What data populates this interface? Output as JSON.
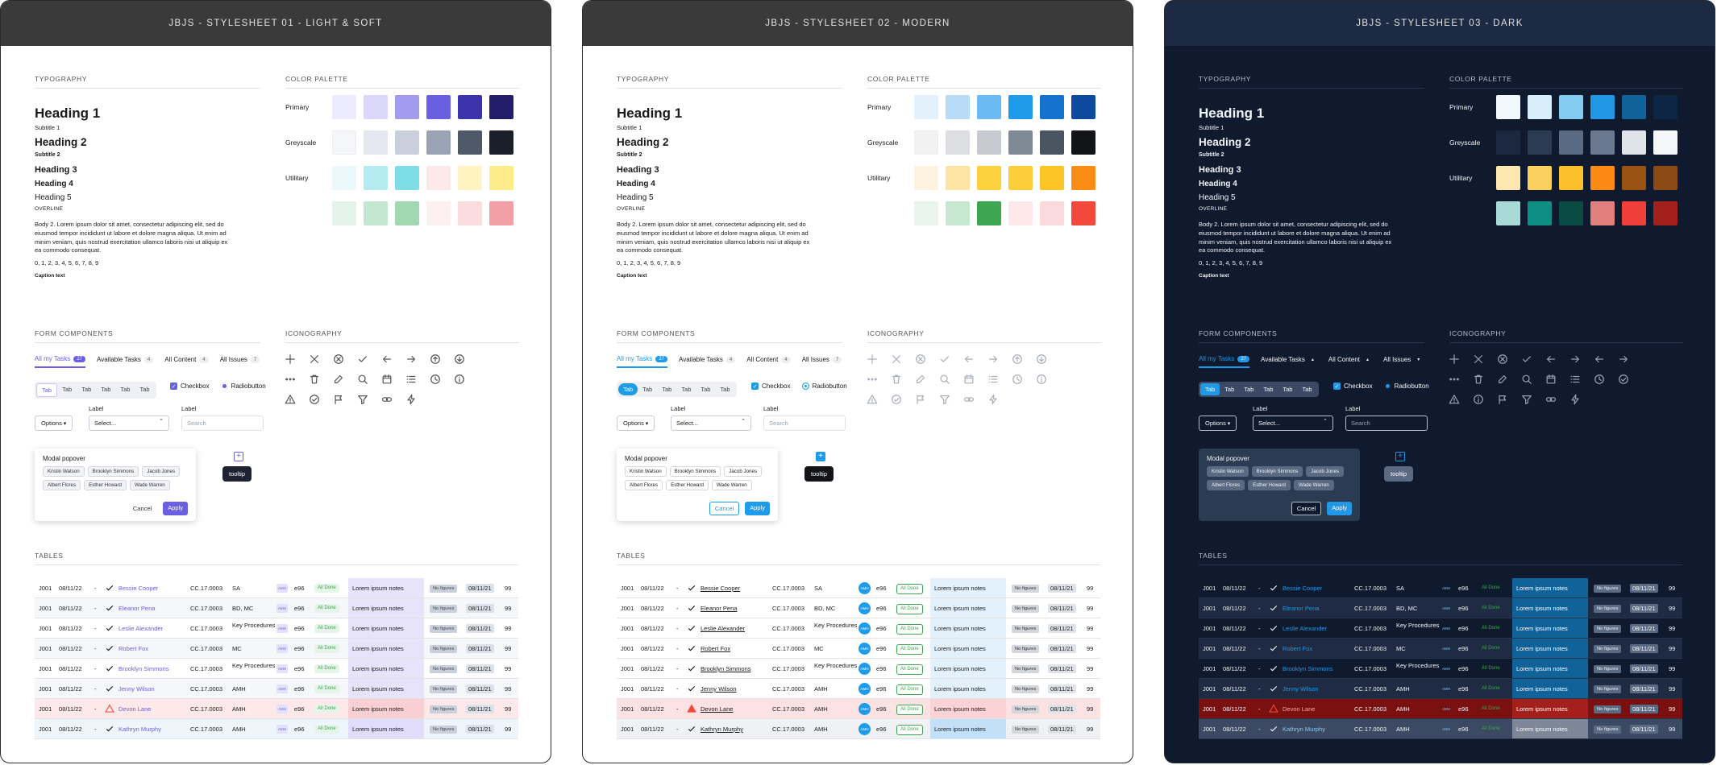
{
  "boards": [
    {
      "title": "JBJS - STYLESHEET 01 - LIGHT & SOFT",
      "theme": "light"
    },
    {
      "title": "JBJS - STYLESHEET 02 - MODERN",
      "theme": "modern"
    },
    {
      "title": "JBJS - STYLESHEET 03 - DARK",
      "theme": "dark"
    }
  ],
  "sections": {
    "typography": "TYPOGRAPHY",
    "palette": "COLOR PALETTE",
    "forms": "FORM COMPONENTS",
    "icons": "ICONOGRAPHY",
    "tables": "TABLES"
  },
  "typography": {
    "h1": "Heading 1",
    "sub1": "Subtitle 1",
    "h2": "Heading 2",
    "sub2": "Subtitle 2",
    "h3": "Heading 3",
    "h4": "Heading 4",
    "h5": "Heading 5",
    "overline": "OVERLINE",
    "body2": "Body 2. Lorem ipsum dolor sit amet, consectetur adipiscing elit, sed do eiusmod tempor incididunt ut labore et dolore magna aliqua. Ut enim ad minim veniam, quis nostrud exercitation ullamco laboris nisi ut aliquip ex ea commodo consequat.",
    "numbers": "0, 1, 2, 3, 4, 5, 6, 7, 8, 9",
    "caption": "Caption text"
  },
  "palette_labels": [
    "Primary",
    "Greyscale",
    "Utilitary",
    ""
  ],
  "palettes": {
    "light": [
      [
        "#ecebfd",
        "#dcd8fb",
        "#a39cee",
        "#6a5fe0",
        "#3d33ab",
        "#231d6b"
      ],
      [
        "#f5f6fa",
        "#e4e7ef",
        "#c9cfdb",
        "#9aa3b3",
        "#4f5867",
        "#1b1f2a"
      ],
      [
        "#ecf9fc",
        "#b3ebf0",
        "#7fdde8",
        "#fde9ea",
        "#fef4c2",
        "#fdec8a"
      ],
      [
        "#e3f3ea",
        "#c4e7d2",
        "#a1d8b2",
        "#fdf0f1",
        "#fbdde0",
        "#f2a0a5"
      ]
    ],
    "modern": [
      [
        "#e3f1fc",
        "#b8dcf8",
        "#6cbaf3",
        "#1e9be9",
        "#1673cd",
        "#0d4a9e"
      ],
      [
        "#f2f2f3",
        "#dcdee1",
        "#c6cad0",
        "#7f8895",
        "#4b5461",
        "#121418"
      ],
      [
        "#fdf1df",
        "#fde3a4",
        "#fcd23e",
        "#fcce3c",
        "#fcc525",
        "#fb8c15"
      ],
      [
        "#e8f4ec",
        "#c7e7d1",
        "#3ea650",
        "#fde9ea",
        "#fbd9dd",
        "#f2493c"
      ]
    ],
    "dark": [
      [
        "#f1f9fe",
        "#d9eefb",
        "#84cbf1",
        "#2197e6",
        "#12629a",
        "#0d2644"
      ],
      [
        "#1b283f",
        "#2b3b52",
        "#5a6a82",
        "#6a7890",
        "#dfe3ea",
        "#f5f6f8"
      ],
      [
        "#fde7b0",
        "#fcd05e",
        "#fbc02b",
        "#fa8a14",
        "#9a5312",
        "#8b4a13"
      ],
      [
        "#a9dbd6",
        "#0d8e82",
        "#0a4c42",
        "#e17f7c",
        "#ee3f3a",
        "#a3201c"
      ]
    ]
  },
  "tabs": [
    {
      "label": "All my Tasks",
      "count": "27"
    },
    {
      "label": "Available Tasks",
      "count": "4"
    },
    {
      "label": "All Content",
      "count": "4"
    },
    {
      "label": "All Issues",
      "count": "7"
    }
  ],
  "seg": [
    "Tab",
    "Tab",
    "Tab",
    "Tab",
    "Tab",
    "Tab"
  ],
  "checkbox_label": "Checkbox",
  "radio_label": "Radiobutton",
  "options_label": "Options",
  "field_label": "Label",
  "select_placeholder": "Select...",
  "search_placeholder": "Search",
  "modal": {
    "title": "Modal popover",
    "chips": [
      "Kristin Watson",
      "Brooklyn Simmons",
      "Jacob Jones",
      "Albert Flores",
      "Esther Howard",
      "Wade Warren"
    ],
    "cancel": "Cancel",
    "apply": "Apply"
  },
  "tooltip": "tooltip",
  "table": {
    "rows": [
      {
        "id": "J001",
        "date": "08/11/22",
        "dash": "-",
        "name": "Bessie Cooper",
        "code": "CC.17.0003",
        "dept": "SA",
        "avatar": "AMH",
        "num": "e96",
        "status": "All Done",
        "notes": "Lorem ipsum notes",
        "nof": "No figures",
        "date2": "08/11/21",
        "count": "99",
        "icon": "check"
      },
      {
        "id": "J001",
        "date": "08/11/22",
        "dash": "-",
        "name": "Eleanor Pena",
        "code": "CC.17.0003",
        "dept": "BD, MC",
        "avatar": "AMH",
        "num": "e96",
        "status": "All Done",
        "notes": "Lorem ipsum notes",
        "nof": "No figures",
        "date2": "08/11/21",
        "count": "99",
        "icon": "check"
      },
      {
        "id": "J001",
        "date": "08/11/22",
        "dash": "-",
        "name": "Leslie Alexander",
        "code": "CC.17.0003",
        "dept": "Key Procedures",
        "avatar": "AMH",
        "num": "e96",
        "status": "All Done",
        "notes": "Lorem ipsum notes",
        "nof": "No figures",
        "date2": "08/11/21",
        "count": "99",
        "icon": "check"
      },
      {
        "id": "J001",
        "date": "08/11/22",
        "dash": "-",
        "name": "Robert Fox",
        "code": "CC.17.0003",
        "dept": "MC",
        "avatar": "AMH",
        "num": "e96",
        "status": "All Done",
        "notes": "Lorem ipsum notes",
        "nof": "No figures",
        "date2": "08/11/21",
        "count": "99",
        "icon": "check"
      },
      {
        "id": "J001",
        "date": "08/11/22",
        "dash": "-",
        "name": "Brooklyn Simmons",
        "code": "CC.17.0003",
        "dept": "Key Procedures",
        "avatar": "AMH",
        "num": "e96",
        "status": "All Done",
        "notes": "Lorem ipsum notes",
        "nof": "No figures",
        "date2": "08/11/21",
        "count": "99",
        "icon": "check"
      },
      {
        "id": "J001",
        "date": "08/11/22",
        "dash": "-",
        "name": "Jenny Wilson",
        "code": "CC.17.0003",
        "dept": "AMH",
        "avatar": "AMH",
        "num": "e96",
        "status": "All Done",
        "notes": "Lorem ipsum notes",
        "nof": "No figures",
        "date2": "08/11/21",
        "count": "99",
        "icon": "check"
      },
      {
        "id": "J001",
        "date": "08/11/22",
        "dash": "-",
        "name": "Devon Lane",
        "code": "CC.17.0003",
        "dept": "AMH",
        "avatar": "AMH",
        "num": "e96",
        "status": "All Done",
        "notes": "Lorem ipsum notes",
        "nof": "No figures",
        "date2": "08/11/21",
        "count": "99",
        "icon": "warn"
      },
      {
        "id": "J001",
        "date": "08/11/22",
        "dash": "-",
        "name": "Kathryn Murphy",
        "code": "CC.17.0003",
        "dept": "AMH",
        "avatar": "AMH",
        "num": "e96",
        "status": "All Done",
        "notes": "Lorem ipsum notes",
        "nof": "No figures",
        "date2": "08/11/21",
        "count": "99",
        "icon": "check"
      }
    ]
  },
  "icon_names": [
    "plus-icon",
    "close-icon",
    "close-circle-icon",
    "check-icon",
    "arrow-left-icon",
    "arrow-right-icon",
    "arrow-up-circle-icon",
    "arrow-down-circle-icon",
    "more-icon",
    "trash-icon",
    "edit-icon",
    "search-icon",
    "calendar-icon",
    "list-icon",
    "clock-icon",
    "info-icon",
    "warning-icon",
    "check-circle-icon",
    "flag-icon",
    "filter-icon",
    "link-icon",
    "bolt-icon"
  ],
  "colors": {
    "light_accent": "#6a5fe0",
    "modern_accent": "#1e9be9",
    "dark_bg": "#0f1a2e",
    "dark_accent": "#2197e6"
  }
}
